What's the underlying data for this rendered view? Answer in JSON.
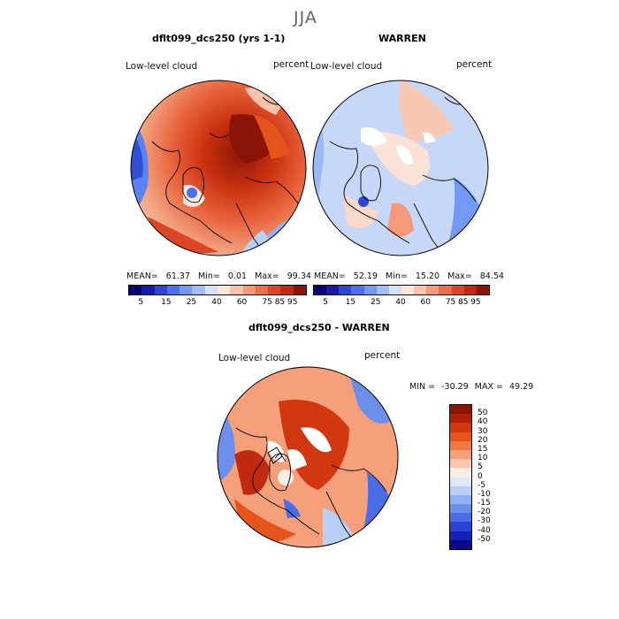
{
  "season": "JJA",
  "panels": [
    {
      "title": "dflt099_dcs250 (yrs 1-1)",
      "variable": "Low-level cloud",
      "units": "percent",
      "stats": {
        "mean_label": "MEAN=",
        "mean": "61.37",
        "min_label": "Min=",
        "min": "0.01",
        "max_label": "Max=",
        "max": "99.34"
      }
    },
    {
      "title": "WARREN",
      "variable": "Low-level cloud",
      "units": "percent",
      "stats": {
        "mean_label": "MEAN=",
        "mean": "52.19",
        "min_label": "Min=",
        "min": "15.20",
        "max_label": "Max=",
        "max": "84.54"
      }
    }
  ],
  "colorbar_top": {
    "colors": [
      "#08006e",
      "#1a1aa8",
      "#2f46d2",
      "#4a72e8",
      "#7499f2",
      "#a3bef6",
      "#d3e2fb",
      "#fbe6dc",
      "#f7c3ab",
      "#f39a7a",
      "#ea6e4b",
      "#dc4526",
      "#c02a10",
      "#8a1406"
    ],
    "ticks": [
      "5",
      "15",
      "25",
      "40",
      "60",
      "75",
      "85",
      "95"
    ]
  },
  "diff_panel": {
    "title": "dflt099_dcs250 - WARREN",
    "variable": "Low-level cloud",
    "units": "percent",
    "stats": {
      "min_label": "MIN =",
      "min": "-30.29",
      "max_label": "MAX =",
      "max": "49.29"
    }
  },
  "colorbar_diff": {
    "colors": [
      "#8a1406",
      "#b02008",
      "#d2380f",
      "#e6541c",
      "#ef7a45",
      "#f5a07a",
      "#fac8b0",
      "#fbeee6",
      "#dfe9fb",
      "#b8cff7",
      "#90b1f2",
      "#6d8fec",
      "#4a6ce4",
      "#2a44d8",
      "#1422b8",
      "#0a0a86"
    ],
    "ticks": [
      "50",
      "40",
      "30",
      "20",
      "15",
      "10",
      "5",
      "0",
      "-5",
      "-10",
      "-15",
      "-20",
      "-30",
      "-40",
      "-50"
    ]
  }
}
